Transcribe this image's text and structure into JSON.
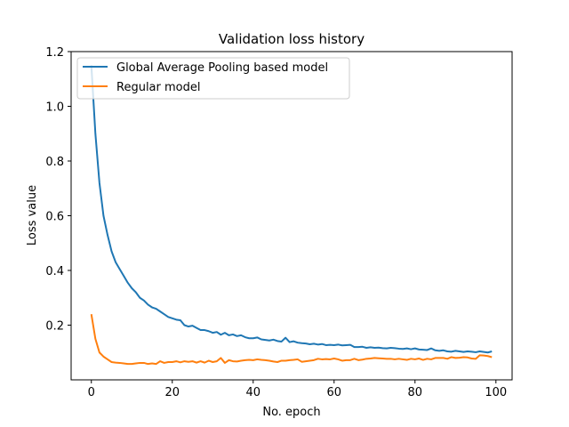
{
  "chart_data": {
    "type": "line",
    "title": "Validation loss history",
    "xlabel": "No. epoch",
    "ylabel": "Loss value",
    "xlim": [
      -5,
      104
    ],
    "ylim": [
      0.0,
      1.2
    ],
    "xticks": [
      0,
      20,
      40,
      60,
      80,
      100
    ],
    "yticks": [
      0.2,
      0.4,
      0.6,
      0.8,
      1.0,
      1.2
    ],
    "ytick_labels": [
      "0.2",
      "0.4",
      "0.6",
      "0.8",
      "1.0",
      "1.2"
    ],
    "legend_position": "top-left",
    "grid": false,
    "series": [
      {
        "name": "Global Average Pooling based model",
        "color": "#1f77b4",
        "x": [
          0,
          1,
          2,
          3,
          4,
          5,
          6,
          7,
          8,
          9,
          10,
          11,
          12,
          13,
          14,
          15,
          16,
          17,
          18,
          19,
          20,
          21,
          22,
          23,
          24,
          25,
          26,
          27,
          28,
          29,
          30,
          31,
          32,
          33,
          34,
          35,
          36,
          37,
          38,
          39,
          40,
          41,
          42,
          43,
          44,
          45,
          46,
          47,
          48,
          49,
          50,
          51,
          52,
          53,
          54,
          55,
          56,
          57,
          58,
          59,
          60,
          61,
          62,
          63,
          64,
          65,
          66,
          67,
          68,
          69,
          70,
          71,
          72,
          73,
          74,
          75,
          76,
          77,
          78,
          79,
          80,
          81,
          82,
          83,
          84,
          85,
          86,
          87,
          88,
          89,
          90,
          91,
          92,
          93,
          94,
          95,
          96,
          97,
          98,
          99
        ],
        "values": [
          1.15,
          0.9,
          0.72,
          0.6,
          0.53,
          0.47,
          0.43,
          0.405,
          0.38,
          0.355,
          0.335,
          0.32,
          0.3,
          0.29,
          0.275,
          0.265,
          0.26,
          0.25,
          0.24,
          0.23,
          0.225,
          0.22,
          0.218,
          0.2,
          0.195,
          0.198,
          0.19,
          0.182,
          0.182,
          0.178,
          0.172,
          0.175,
          0.165,
          0.172,
          0.163,
          0.166,
          0.16,
          0.163,
          0.156,
          0.152,
          0.152,
          0.155,
          0.148,
          0.146,
          0.144,
          0.147,
          0.142,
          0.14,
          0.154,
          0.138,
          0.141,
          0.136,
          0.134,
          0.133,
          0.13,
          0.132,
          0.129,
          0.131,
          0.127,
          0.128,
          0.127,
          0.129,
          0.126,
          0.127,
          0.128,
          0.12,
          0.12,
          0.121,
          0.117,
          0.119,
          0.117,
          0.118,
          0.116,
          0.115,
          0.117,
          0.116,
          0.114,
          0.113,
          0.115,
          0.112,
          0.115,
          0.111,
          0.11,
          0.109,
          0.115,
          0.108,
          0.106,
          0.108,
          0.104,
          0.103,
          0.106,
          0.104,
          0.102,
          0.104,
          0.103,
          0.101,
          0.104,
          0.102,
          0.1,
          0.104
        ]
      },
      {
        "name": "Regular model",
        "color": "#ff7f0e",
        "x": [
          0,
          1,
          2,
          3,
          4,
          5,
          6,
          7,
          8,
          9,
          10,
          11,
          12,
          13,
          14,
          15,
          16,
          17,
          18,
          19,
          20,
          21,
          22,
          23,
          24,
          25,
          26,
          27,
          28,
          29,
          30,
          31,
          32,
          33,
          34,
          35,
          36,
          37,
          38,
          39,
          40,
          41,
          42,
          43,
          44,
          45,
          46,
          47,
          48,
          49,
          50,
          51,
          52,
          53,
          54,
          55,
          56,
          57,
          58,
          59,
          60,
          61,
          62,
          63,
          64,
          65,
          66,
          67,
          68,
          69,
          70,
          71,
          72,
          73,
          74,
          75,
          76,
          77,
          78,
          79,
          80,
          81,
          82,
          83,
          84,
          85,
          86,
          87,
          88,
          89,
          90,
          91,
          92,
          93,
          94,
          95,
          96,
          97,
          98,
          99
        ],
        "values": [
          0.24,
          0.15,
          0.1,
          0.085,
          0.075,
          0.065,
          0.063,
          0.062,
          0.06,
          0.058,
          0.058,
          0.06,
          0.062,
          0.062,
          0.058,
          0.06,
          0.058,
          0.068,
          0.062,
          0.065,
          0.065,
          0.068,
          0.064,
          0.068,
          0.066,
          0.068,
          0.063,
          0.068,
          0.063,
          0.07,
          0.065,
          0.068,
          0.08,
          0.062,
          0.072,
          0.068,
          0.067,
          0.07,
          0.072,
          0.073,
          0.072,
          0.075,
          0.073,
          0.072,
          0.07,
          0.067,
          0.065,
          0.07,
          0.07,
          0.072,
          0.073,
          0.075,
          0.066,
          0.068,
          0.07,
          0.072,
          0.077,
          0.075,
          0.076,
          0.075,
          0.078,
          0.075,
          0.07,
          0.072,
          0.072,
          0.077,
          0.072,
          0.074,
          0.077,
          0.078,
          0.08,
          0.079,
          0.078,
          0.077,
          0.077,
          0.075,
          0.077,
          0.075,
          0.073,
          0.077,
          0.075,
          0.078,
          0.073,
          0.077,
          0.075,
          0.08,
          0.08,
          0.08,
          0.077,
          0.083,
          0.08,
          0.081,
          0.083,
          0.082,
          0.078,
          0.077,
          0.09,
          0.089,
          0.087,
          0.083
        ]
      }
    ]
  }
}
